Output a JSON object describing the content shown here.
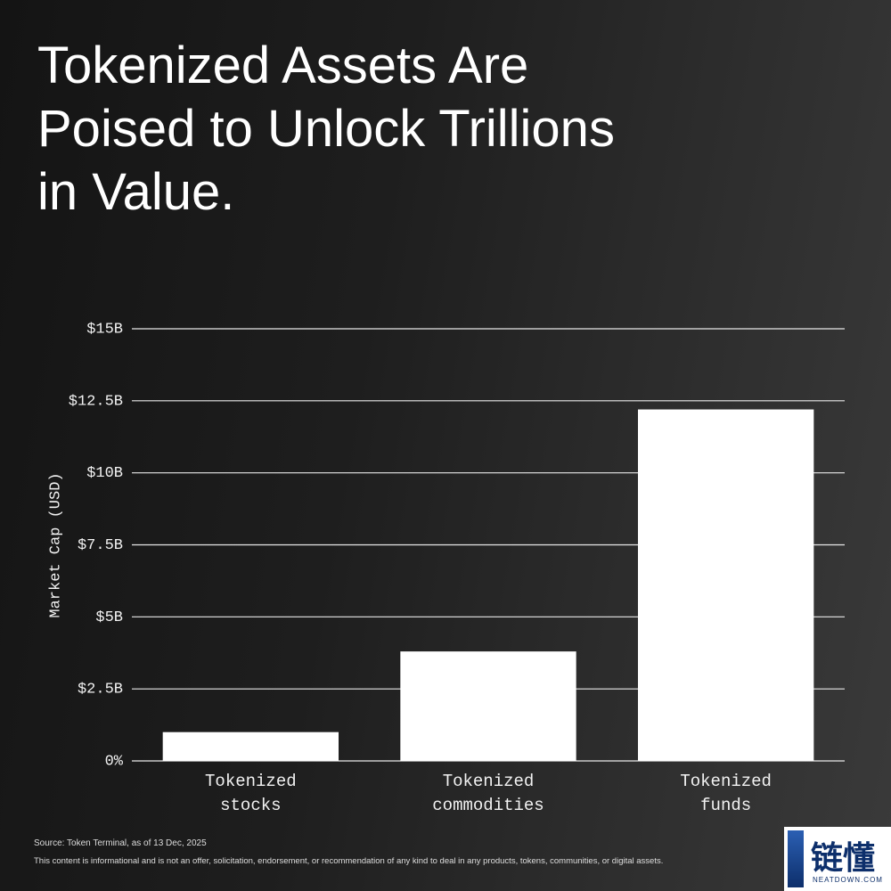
{
  "chart_data": {
    "type": "bar",
    "title": "Tokenized Assets Are Poised to Unlock Trillions in Value.",
    "y_label": "Market Cap (USD)",
    "categories": [
      "Tokenized stocks",
      "Tokenized commodities",
      "Tokenized funds"
    ],
    "values": [
      1.0,
      3.8,
      12.2
    ],
    "color": "#ffffff",
    "ylim": [
      0,
      15
    ],
    "yticks": [
      {
        "value": 0,
        "label": "0%"
      },
      {
        "value": 2.5,
        "label": "$2.5B"
      },
      {
        "value": 5,
        "label": "$5B"
      },
      {
        "value": 7.5,
        "label": "$7.5B"
      },
      {
        "value": 10,
        "label": "$10B"
      },
      {
        "value": 12.5,
        "label": "$12.5B"
      },
      {
        "value": 15,
        "label": "$15B"
      }
    ],
    "grid": true
  },
  "source": "Source: Token Terminal, as of 13 Dec, 2025",
  "disclaimer": "This content is informational and is not an offer, solicitation, endorsement, or recommendation of any kind to deal in any products, tokens, communities, or digital assets.",
  "logo": {
    "text": "链懂",
    "subtext": "NEATDOWN.COM"
  }
}
